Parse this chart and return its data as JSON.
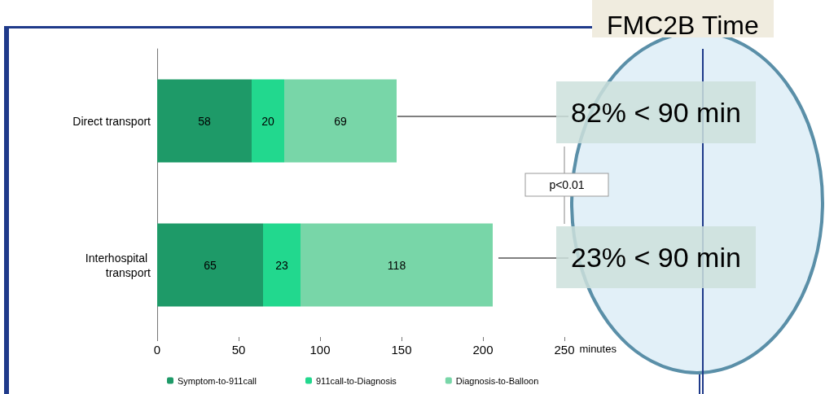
{
  "chart_data": {
    "type": "bar",
    "orientation": "horizontal",
    "stacked": true,
    "data_labels": true,
    "categories": [
      "Direct transport",
      "Interhospital transport"
    ],
    "series": [
      {
        "name": "Symptom-to-911call",
        "color": "#1e9a68",
        "values": [
          58,
          65
        ]
      },
      {
        "name": "911call-to-Diagnosis",
        "color": "#22d88e",
        "values": [
          20,
          23
        ]
      },
      {
        "name": "Diagnosis-to-Balloon",
        "color": "#78d6a8",
        "values": [
          69,
          118
        ]
      }
    ],
    "xlabel": "minutes",
    "xlim": [
      0,
      250
    ],
    "xticks": [
      0,
      50,
      100,
      150,
      200,
      250
    ],
    "grid": false,
    "legend": "bottom",
    "annotations": [
      "FMC2B Time",
      "82% < 90 min",
      "p<0.01",
      "23% < 90 min"
    ]
  }
}
